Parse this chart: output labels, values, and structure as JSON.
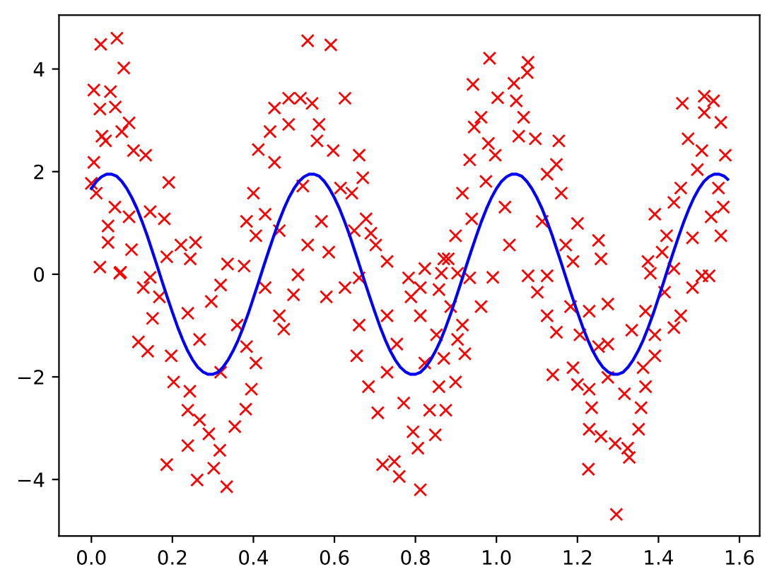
{
  "chart_data": {
    "type": "scatter",
    "xlim": [
      -0.08,
      1.65
    ],
    "ylim": [
      -5.1,
      5.05
    ],
    "xticks": [
      {
        "value": 0,
        "label": "0.0"
      },
      {
        "value": 0.2,
        "label": "0.2"
      },
      {
        "value": 0.4,
        "label": "0.4"
      },
      {
        "value": 0.6,
        "label": "0.6"
      },
      {
        "value": 0.8,
        "label": "0.8"
      },
      {
        "value": 1.0,
        "label": "1.0"
      },
      {
        "value": 1.2,
        "label": "1.2"
      },
      {
        "value": 1.4,
        "label": "1.4"
      },
      {
        "value": 1.6,
        "label": "1.6"
      }
    ],
    "yticks": [
      {
        "value": -4,
        "label": "−4"
      },
      {
        "value": -2,
        "label": "−2"
      },
      0,
      2,
      4
    ],
    "series": [
      {
        "color": "#ff0000",
        "marker": "cross",
        "x": [
          0.0,
          0.006,
          0.006,
          0.012,
          0.021,
          0.021,
          0.023,
          0.026,
          0.035,
          0.041,
          0.041,
          0.047,
          0.058,
          0.059,
          0.063,
          0.072,
          0.075,
          0.08,
          0.093,
          0.093,
          0.099,
          0.104,
          0.134,
          0.145,
          0.18,
          0.186,
          0.191,
          0.221,
          0.244,
          0.257,
          0.336,
          0.377,
          0.383,
          0.4,
          0.406,
          0.412,
          0.429,
          0.441,
          0.452,
          0.452,
          0.464,
          0.487,
          0.487,
          0.51,
          0.516,
          0.522,
          0.534,
          0.534,
          0.545,
          0.557,
          0.562,
          0.568,
          0.586,
          0.591,
          0.597,
          0.615,
          0.626,
          0.643,
          0.649,
          0.661,
          0.67,
          0.678,
          0.69,
          0.702,
          0.73,
          0.783,
          0.983,
          1.078,
          1.076,
          0.942,
          1.043,
          1.003,
          1.049,
          0.962,
          0.945,
          1.067,
          1.055,
          1.154,
          0.98,
          0.934,
          1.096,
          1.148,
          0.997,
          0.916,
          0.974,
          1.125,
          1.16,
          0.939,
          1.021,
          1.032,
          1.113,
          1.171,
          1.2,
          1.252,
          1.258,
          0.899,
          0.881,
          0.823,
          0.991,
          1.189,
          1.459,
          1.513,
          1.536,
          1.554,
          1.473,
          1.513,
          1.507,
          1.565,
          1.455,
          1.496,
          1.548,
          1.56,
          1.391,
          1.438,
          1.53,
          1.554,
          1.42,
          1.484,
          1.374,
          1.438,
          1.507,
          1.409,
          0.87,
          0.904,
          0.07,
          0.128,
          0.168,
          0.116,
          0.139,
          0.151,
          0.197,
          0.203,
          0.238,
          0.243,
          0.267,
          0.29,
          0.238,
          0.186,
          0.317,
          0.261,
          0.302,
          0.334,
          0.354,
          0.381,
          0.395,
          0.406,
          0.383,
          0.319,
          0.267,
          0.238,
          0.296,
          0.36,
          0.319,
          0.429,
          0.464,
          0.475,
          0.499,
          0.58,
          0.661,
          0.626,
          0.661,
          0.655,
          0.684,
          0.707,
          0.719,
          0.748,
          0.76,
          0.771,
          0.73,
          0.754,
          0.73,
          0.789,
          0.812,
          0.794,
          0.806,
          0.812,
          0.145,
          0.849,
          0.875,
          0.835,
          0.858,
          0.899,
          0.823,
          0.87,
          0.922,
          0.904,
          0.852,
          0.916,
          0.962,
          0.887,
          0.812,
          0.858,
          0.934,
          0.864,
          1.078,
          1.101,
          1.125,
          1.148,
          1.139,
          1.189,
          1.2,
          1.229,
          1.235,
          1.229,
          1.258,
          1.227,
          1.296,
          1.293,
          1.324,
          1.328,
          1.351,
          1.357,
          1.368,
          1.391,
          1.362,
          1.275,
          1.229,
          1.183,
          1.206,
          1.275,
          1.334,
          1.368,
          1.391,
          1.438,
          1.455,
          1.415,
          1.484,
          1.525,
          1.38,
          1.125,
          1.275,
          1.316,
          1.252
        ],
        "values": [
          1.77,
          3.59,
          2.18,
          1.58,
          3.22,
          0.14,
          4.48,
          2.69,
          2.6,
          0.94,
          0.62,
          3.56,
          1.31,
          3.26,
          4.6,
          0.04,
          2.78,
          4.02,
          2.95,
          1.12,
          0.48,
          2.41,
          2.32,
          1.22,
          1.08,
          0.34,
          1.79,
          0.57,
          0.3,
          0.62,
          0.2,
          0.16,
          1.03,
          1.58,
          0.75,
          2.43,
          1.17,
          2.78,
          3.24,
          2.18,
          0.85,
          3.43,
          2.92,
          -0.01,
          3.43,
          1.72,
          4.55,
          0.57,
          3.33,
          2.6,
          2.92,
          1.03,
          0.43,
          4.47,
          2.41,
          1.68,
          3.43,
          1.58,
          0.85,
          2.32,
          1.88,
          1.08,
          0.8,
          0.57,
          0.25,
          -0.07,
          4.21,
          4.13,
          3.93,
          3.7,
          3.72,
          3.44,
          3.38,
          3.06,
          2.87,
          3.06,
          2.69,
          2.6,
          2.55,
          2.23,
          2.64,
          2.14,
          2.32,
          1.58,
          1.81,
          1.95,
          1.58,
          1.08,
          1.31,
          0.57,
          1.03,
          0.57,
          0.99,
          0.66,
          0.3,
          0.75,
          0.3,
          0.11,
          -0.06,
          0.25,
          3.33,
          3.47,
          3.38,
          2.96,
          2.64,
          3.15,
          2.41,
          2.32,
          1.68,
          2.04,
          1.68,
          1.31,
          1.17,
          1.4,
          1.12,
          0.75,
          0.75,
          0.71,
          0.25,
          0.11,
          -0.03,
          0.43,
          0.3,
          0.02,
          0.02,
          -0.26,
          -0.44,
          -1.32,
          -1.5,
          -0.86,
          -1.59,
          -2.1,
          -2.65,
          -2.28,
          -2.84,
          -3.11,
          -3.34,
          -3.71,
          -3.43,
          -4.01,
          -3.78,
          -4.14,
          -2.97,
          -2.63,
          -2.24,
          -1.73,
          -1.41,
          -1.91,
          -1.27,
          -0.76,
          -0.53,
          -0.99,
          -0.21,
          -0.26,
          -0.81,
          -1.07,
          -0.4,
          -0.44,
          -0.07,
          -0.26,
          -0.99,
          -1.59,
          -2.19,
          -2.7,
          -3.71,
          -3.65,
          -3.94,
          -2.51,
          -1.91,
          -1.36,
          -0.81,
          -0.44,
          -0.81,
          -3.07,
          -3.39,
          -4.2,
          -0.06,
          -3.13,
          -2.65,
          -2.65,
          -2.19,
          -2.1,
          -1.73,
          -1.64,
          -1.55,
          -1.27,
          -1.18,
          -0.99,
          -0.63,
          -0.63,
          -0.26,
          -0.3,
          -0.07,
          0.02,
          -0.03,
          -0.35,
          -0.81,
          -1.13,
          -1.96,
          -1.82,
          -2.15,
          -2.24,
          -2.6,
          -3.02,
          -3.16,
          -3.8,
          -4.68,
          -3.3,
          -3.39,
          -3.57,
          -3.02,
          -2.6,
          -2.19,
          -1.59,
          -1.82,
          -0.58,
          -0.72,
          -0.63,
          -1.18,
          -1.36,
          -1.09,
          -0.72,
          -1.18,
          -1.04,
          -0.81,
          -0.35,
          -0.26,
          -0.03,
          0.02,
          -0.03,
          -2.01,
          -2.33,
          -1.41
        ]
      },
      {
        "type": "line",
        "color": "#0000ff",
        "marker": "none",
        "line_style": "solid",
        "x": [
          0,
          0.0125,
          0.025,
          0.0375,
          0.05,
          0.0625,
          0.075,
          0.0875,
          0.1,
          0.1125,
          0.125,
          0.1375,
          0.15,
          0.1625,
          0.175,
          0.1875,
          0.2,
          0.2125,
          0.225,
          0.2375,
          0.25,
          0.2625,
          0.275,
          0.2875,
          0.3,
          0.3125,
          0.325,
          0.3375,
          0.35,
          0.3625,
          0.375,
          0.3875,
          0.4,
          0.4125,
          0.425,
          0.4375,
          0.45,
          0.4625,
          0.475,
          0.4875,
          0.5,
          0.5125,
          0.525,
          0.5375,
          0.55,
          0.5625,
          0.575,
          0.5875,
          0.6,
          0.6125,
          0.625,
          0.6375,
          0.65,
          0.6625,
          0.675,
          0.6875,
          0.7,
          0.7125,
          0.725,
          0.7375,
          0.75,
          0.7625,
          0.775,
          0.7875,
          0.8,
          0.8125,
          0.825,
          0.8375,
          0.85,
          0.8625,
          0.875,
          0.8875,
          0.9,
          0.9125,
          0.925,
          0.9375,
          0.95,
          0.9625,
          0.975,
          0.9875,
          1.0,
          1.0125,
          1.025,
          1.0375,
          1.05,
          1.0625,
          1.075,
          1.0875,
          1.1,
          1.1125,
          1.125,
          1.1375,
          1.15,
          1.1625,
          1.175,
          1.1875,
          1.2,
          1.2125,
          1.225,
          1.2375,
          1.25,
          1.2625,
          1.275,
          1.2875,
          1.3,
          1.3125,
          1.325,
          1.3375,
          1.35,
          1.3625,
          1.375,
          1.3875,
          1.4,
          1.4125,
          1.425,
          1.4375,
          1.45,
          1.4625,
          1.475,
          1.4875,
          1.5,
          1.5125,
          1.525,
          1.5375,
          1.55,
          1.5625,
          1.571
        ],
        "values": [
          1.67,
          1.81,
          1.9,
          1.95,
          1.95,
          1.91,
          1.81,
          1.67,
          1.49,
          1.28,
          1.03,
          0.76,
          0.46,
          0.16,
          -0.15,
          -0.45,
          -0.74,
          -1.02,
          -1.27,
          -1.49,
          -1.67,
          -1.81,
          -1.9,
          -1.95,
          -1.95,
          -1.91,
          -1.81,
          -1.67,
          -1.49,
          -1.28,
          -1.03,
          -0.76,
          -0.46,
          -0.16,
          0.15,
          0.45,
          0.74,
          1.02,
          1.27,
          1.49,
          1.67,
          1.81,
          1.9,
          1.95,
          1.95,
          1.91,
          1.81,
          1.67,
          1.49,
          1.28,
          1.03,
          0.76,
          0.46,
          0.16,
          -0.15,
          -0.45,
          -0.74,
          -1.02,
          -1.27,
          -1.49,
          -1.67,
          -1.81,
          -1.9,
          -1.95,
          -1.95,
          -1.91,
          -1.81,
          -1.67,
          -1.49,
          -1.28,
          -1.03,
          -0.76,
          -0.46,
          -0.16,
          0.15,
          0.45,
          0.74,
          1.02,
          1.27,
          1.49,
          1.67,
          1.81,
          1.9,
          1.95,
          1.95,
          1.91,
          1.81,
          1.67,
          1.49,
          1.28,
          1.03,
          0.76,
          0.46,
          0.16,
          -0.15,
          -0.45,
          -0.74,
          -1.02,
          -1.27,
          -1.49,
          -1.67,
          -1.81,
          -1.9,
          -1.95,
          -1.95,
          -1.91,
          -1.81,
          -1.67,
          -1.49,
          -1.28,
          -1.03,
          -0.76,
          -0.46,
          -0.16,
          0.15,
          0.45,
          0.74,
          1.02,
          1.27,
          1.49,
          1.67,
          1.81,
          1.9,
          1.95,
          1.95,
          1.91,
          1.85
        ]
      }
    ]
  }
}
